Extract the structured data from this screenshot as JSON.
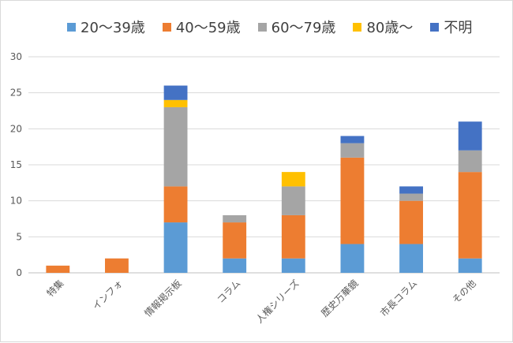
{
  "chart_data": {
    "type": "bar",
    "stacked": true,
    "categories": [
      "特集",
      "インフォ",
      "情報掲示板",
      "コラム",
      "人権シリーズ",
      "歴史万華鏡",
      "市長コラム",
      "その他"
    ],
    "series": [
      {
        "name": "20～39歳",
        "color": "#5b9bd5",
        "values": [
          0,
          0,
          7,
          2,
          2,
          4,
          4,
          2
        ]
      },
      {
        "name": "40～59歳",
        "color": "#ed7d31",
        "values": [
          1,
          2,
          5,
          5,
          6,
          12,
          6,
          12
        ]
      },
      {
        "name": "60～79歳",
        "color": "#a5a5a5",
        "values": [
          0,
          0,
          11,
          1,
          4,
          2,
          1,
          3
        ]
      },
      {
        "name": "80歳～",
        "color": "#ffc000",
        "values": [
          0,
          0,
          1,
          0,
          2,
          0,
          0,
          0
        ]
      },
      {
        "name": "不明",
        "color": "#4472c4",
        "values": [
          0,
          0,
          2,
          0,
          0,
          1,
          1,
          4
        ]
      }
    ],
    "ylim": [
      0,
      30
    ],
    "yticks": [
      "0",
      "5",
      "10",
      "15",
      "20",
      "25",
      "30"
    ],
    "grid": true,
    "legend_position": "top"
  }
}
